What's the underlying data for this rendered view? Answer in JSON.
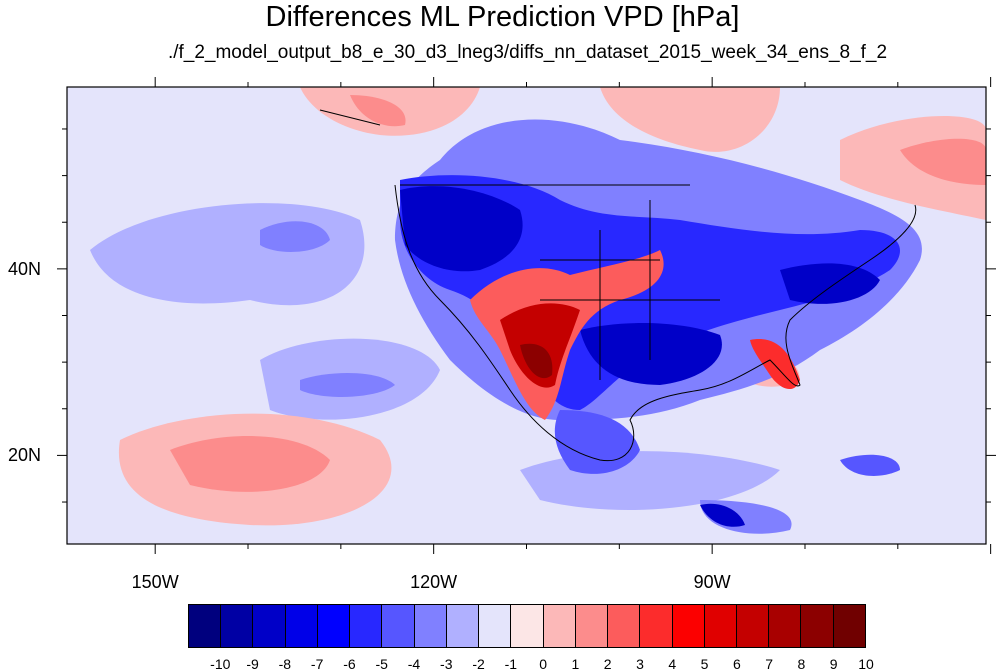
{
  "title": "Differences ML Prediction VPD [hPa]",
  "subtitle": "./f_2_model_output_b8_e_30_d3_lneg3/diffs_nn_dataset_2015_week_34_ens_8_f_2",
  "map": {
    "projection": "cylindrical equidistant",
    "lon_range": [
      -159.5,
      -60.5
    ],
    "lat_range": [
      10.5,
      59.5
    ],
    "lon_labels": [
      {
        "lon": -150,
        "text": "150W"
      },
      {
        "lon": -120,
        "text": "120W"
      },
      {
        "lon": -90,
        "text": "90W"
      }
    ],
    "lat_labels": [
      {
        "lat": 40,
        "text": "40N"
      },
      {
        "lat": 20,
        "text": "20N"
      }
    ]
  },
  "colorbar": {
    "colors": [
      "#00007e",
      "#0000a4",
      "#0000c8",
      "#0000e8",
      "#0000ff",
      "#2828ff",
      "#5656ff",
      "#8080ff",
      "#b0b0ff",
      "#e4e4fb",
      "#fce6e6",
      "#fcb8b8",
      "#fc8c8c",
      "#fc5c5c",
      "#fc2c2c",
      "#fc0000",
      "#e00000",
      "#c40000",
      "#a80000",
      "#8c0000",
      "#700000"
    ],
    "labels": [
      "-10",
      "-9",
      "-8",
      "-7",
      "-6",
      "-5",
      "-4",
      "-3",
      "-2",
      "-1",
      "0",
      "1",
      "2",
      "3",
      "4",
      "5",
      "6",
      "7",
      "8",
      "9",
      "10"
    ]
  }
}
